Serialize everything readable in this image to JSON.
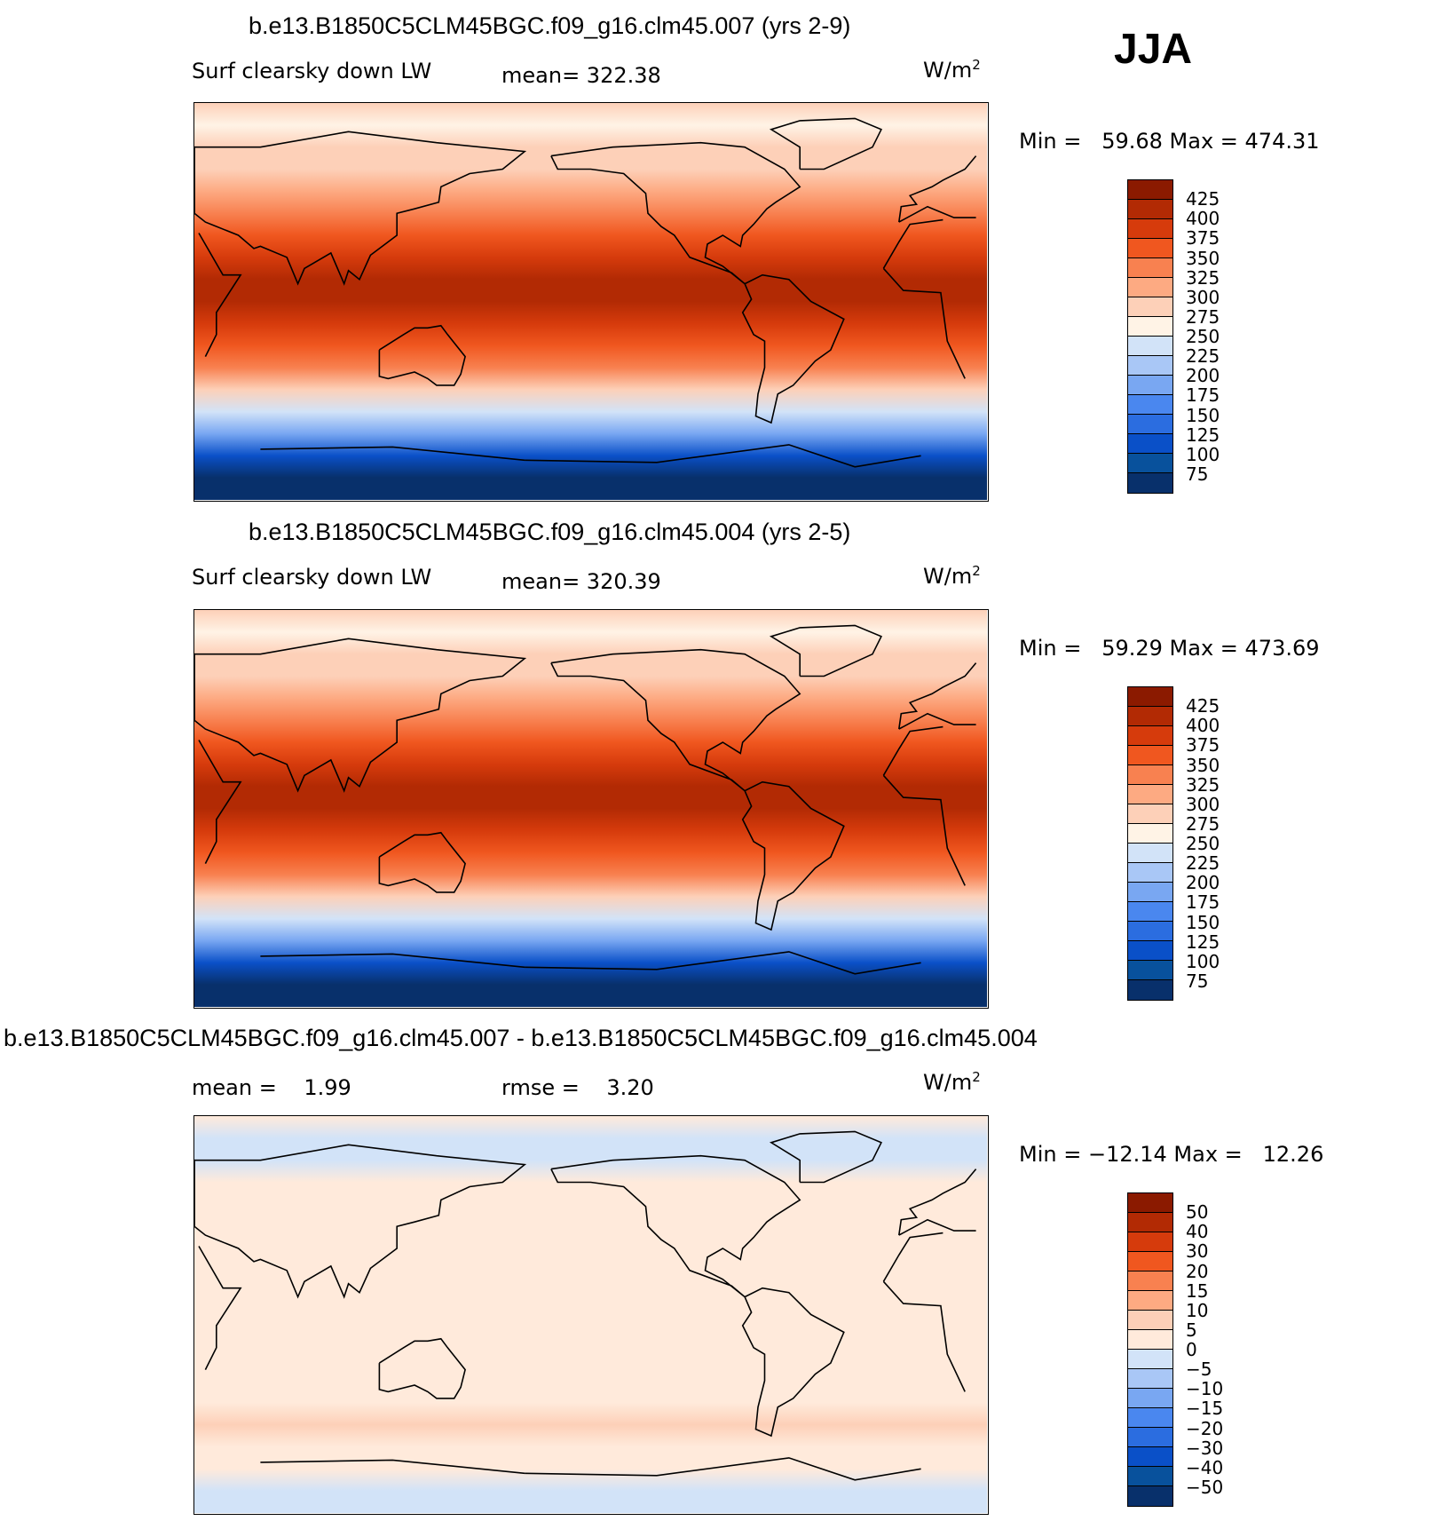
{
  "season": "JJA",
  "palettes": {
    "abs": [
      "#08306b",
      "#08519c",
      "#0a50c8",
      "#2b6de0",
      "#4a87ef",
      "#79a7f2",
      "#a9c7f6",
      "#d2e3f8",
      "#fff3e6",
      "#fdd0b8",
      "#fdaa82",
      "#f88150",
      "#f0571f",
      "#d63b0c",
      "#b22a04",
      "#8b1a00"
    ],
    "diff": [
      "#08306b",
      "#08519c",
      "#0a50c8",
      "#2b6de0",
      "#4a87ef",
      "#79a7f2",
      "#a9c7f6",
      "#d2e3f8",
      "#ffeadb",
      "#fdd0b8",
      "#fdaa82",
      "#f88150",
      "#f0571f",
      "#d63b0c",
      "#b22a04",
      "#8b1a00"
    ]
  },
  "chart_data": [
    {
      "type": "heatmap",
      "title": "b.e13.B1850C5CLM45BGC.f09_g16.clm45.007 (yrs 2-9)",
      "variable": "Surf clearsky down LW",
      "stat1": "mean= 322.38",
      "units": "W/m",
      "units_sup": "2",
      "minmax": "Min =   59.68 Max = 474.31",
      "min": 59.68,
      "max": 474.31,
      "mean": 322.38,
      "levels": [
        "425",
        "400",
        "375",
        "350",
        "325",
        "300",
        "275",
        "250",
        "225",
        "200",
        "175",
        "150",
        "125",
        "100",
        "75"
      ],
      "palette": "abs",
      "bands": [
        {
          "lat": 90,
          "level": 9
        },
        {
          "lat": 80,
          "level": 8
        },
        {
          "lat": 70,
          "level": 9
        },
        {
          "lat": 60,
          "level": 9
        },
        {
          "lat": 50,
          "level": 10
        },
        {
          "lat": 40,
          "level": 11
        },
        {
          "lat": 30,
          "level": 12
        },
        {
          "lat": 20,
          "level": 13
        },
        {
          "lat": 10,
          "level": 14
        },
        {
          "lat": 0,
          "level": 14
        },
        {
          "lat": -10,
          "level": 13
        },
        {
          "lat": -20,
          "level": 12
        },
        {
          "lat": -30,
          "level": 11
        },
        {
          "lat": -40,
          "level": 9
        },
        {
          "lat": -50,
          "level": 7
        },
        {
          "lat": -60,
          "level": 5
        },
        {
          "lat": -70,
          "level": 2
        },
        {
          "lat": -80,
          "level": 0
        },
        {
          "lat": -90,
          "level": 0
        }
      ]
    },
    {
      "type": "heatmap",
      "title": "b.e13.B1850C5CLM45BGC.f09_g16.clm45.004 (yrs 2-5)",
      "variable": "Surf clearsky down LW",
      "stat1": "mean= 320.39",
      "units": "W/m",
      "units_sup": "2",
      "minmax": "Min =   59.29 Max = 473.69",
      "min": 59.29,
      "max": 473.69,
      "mean": 320.39,
      "levels": [
        "425",
        "400",
        "375",
        "350",
        "325",
        "300",
        "275",
        "250",
        "225",
        "200",
        "175",
        "150",
        "125",
        "100",
        "75"
      ],
      "palette": "abs",
      "bands": [
        {
          "lat": 90,
          "level": 9
        },
        {
          "lat": 80,
          "level": 8
        },
        {
          "lat": 70,
          "level": 9
        },
        {
          "lat": 60,
          "level": 9
        },
        {
          "lat": 50,
          "level": 10
        },
        {
          "lat": 40,
          "level": 11
        },
        {
          "lat": 30,
          "level": 12
        },
        {
          "lat": 20,
          "level": 13
        },
        {
          "lat": 10,
          "level": 14
        },
        {
          "lat": 0,
          "level": 14
        },
        {
          "lat": -10,
          "level": 13
        },
        {
          "lat": -20,
          "level": 12
        },
        {
          "lat": -30,
          "level": 11
        },
        {
          "lat": -40,
          "level": 9
        },
        {
          "lat": -50,
          "level": 7
        },
        {
          "lat": -60,
          "level": 5
        },
        {
          "lat": -70,
          "level": 2
        },
        {
          "lat": -80,
          "level": 0
        },
        {
          "lat": -90,
          "level": 0
        }
      ]
    },
    {
      "type": "heatmap",
      "title": "b.e13.B1850C5CLM45BGC.f09_g16.clm45.007 - b.e13.B1850C5CLM45BGC.f09_g16.clm45.004",
      "stat1": "mean =    1.99",
      "stat2": "rmse =    3.20",
      "units": "W/m",
      "units_sup": "2",
      "minmax": "Min = −12.14 Max =   12.26",
      "min": -12.14,
      "max": 12.26,
      "mean": 1.99,
      "rmse": 3.2,
      "levels": [
        "50",
        "40",
        "30",
        "20",
        "15",
        "10",
        "5",
        "0",
        "−5",
        "−10",
        "−15",
        "−20",
        "−30",
        "−40",
        "−50"
      ],
      "palette": "diff",
      "bands": [
        {
          "lat": 90,
          "level": 8
        },
        {
          "lat": 80,
          "level": 7
        },
        {
          "lat": 70,
          "level": 7
        },
        {
          "lat": 60,
          "level": 8
        },
        {
          "lat": 50,
          "level": 8
        },
        {
          "lat": 40,
          "level": 8
        },
        {
          "lat": 30,
          "level": 8
        },
        {
          "lat": 20,
          "level": 8
        },
        {
          "lat": 10,
          "level": 8
        },
        {
          "lat": 0,
          "level": 8
        },
        {
          "lat": -10,
          "level": 8
        },
        {
          "lat": -20,
          "level": 8
        },
        {
          "lat": -30,
          "level": 8
        },
        {
          "lat": -40,
          "level": 8
        },
        {
          "lat": -50,
          "level": 9
        },
        {
          "lat": -60,
          "level": 8
        },
        {
          "lat": -70,
          "level": 8
        },
        {
          "lat": -80,
          "level": 7
        },
        {
          "lat": -90,
          "level": 7
        }
      ]
    }
  ]
}
